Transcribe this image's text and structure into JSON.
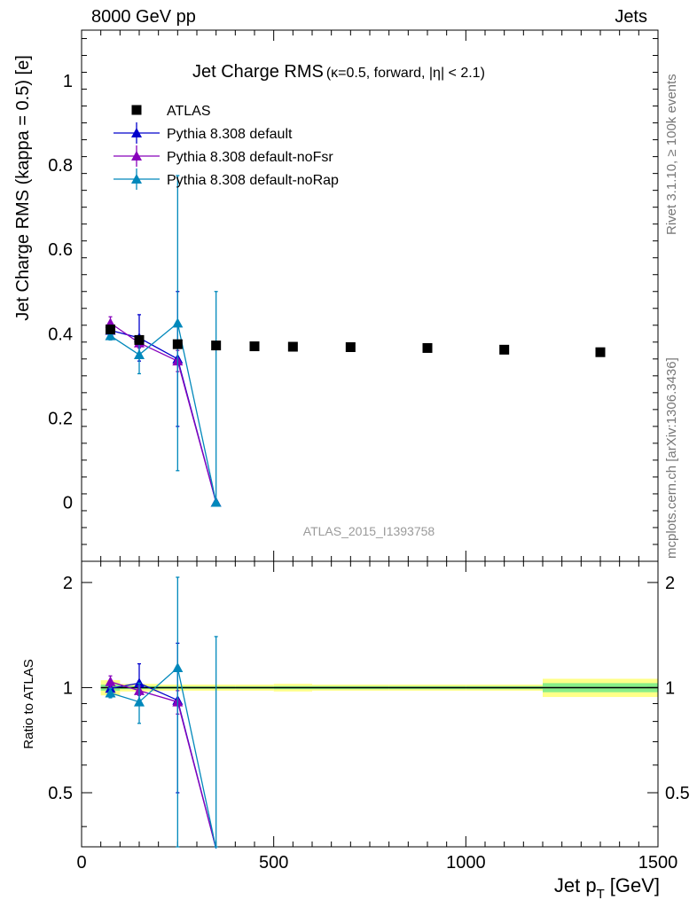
{
  "header": {
    "left": "8000 GeV pp",
    "right": "Jets"
  },
  "side": {
    "rivet": "Rivet 3.1.10, ≥ 100k events",
    "mcplots": "mcplots.cern.ch [arXiv:1306.3436]"
  },
  "colors": {
    "data": "#000000",
    "default": "#0000cc",
    "noFsr": "#8800bb",
    "noRap": "#0088bb",
    "band_outer": "#ffff88",
    "band_inner": "#88ee88"
  },
  "chart_data": [
    {
      "type": "scatter",
      "title": "Jet Charge RMS",
      "title_suffix": "(κ=0.5, forward, |η| < 2.1)",
      "watermark": "ATLAS_2015_I1393758",
      "ylabel": "Jet Charge RMS (kappa = 0.5) [e]",
      "xlim": [
        0,
        1500
      ],
      "ylim": [
        -0.14,
        1.12
      ],
      "y_ticks": [
        0,
        0.2,
        0.4,
        0.6,
        0.8,
        1
      ],
      "y_tick_labels": [
        "0",
        "0.2",
        "0.4",
        "0.6",
        "0.8",
        "1"
      ],
      "legend_position": "top-left",
      "series": [
        {
          "name": "ATLAS",
          "marker": "square",
          "color_key": "data",
          "points": [
            {
              "x": 75,
              "y": 0.41
            },
            {
              "x": 150,
              "y": 0.385
            },
            {
              "x": 250,
              "y": 0.375
            },
            {
              "x": 350,
              "y": 0.372
            },
            {
              "x": 450,
              "y": 0.37
            },
            {
              "x": 550,
              "y": 0.369
            },
            {
              "x": 700,
              "y": 0.368
            },
            {
              "x": 900,
              "y": 0.366
            },
            {
              "x": 1100,
              "y": 0.362
            },
            {
              "x": 1350,
              "y": 0.356
            }
          ]
        },
        {
          "name": "Pythia 8.308 default",
          "marker": "triangle",
          "color_key": "default",
          "points": [
            {
              "x": 75,
              "y": 0.408,
              "err": 0.012
            },
            {
              "x": 150,
              "y": 0.39,
              "err": 0.055
            },
            {
              "x": 250,
              "y": 0.34,
              "err": 0.16
            },
            {
              "x": 350,
              "y": 0.0,
              "err": 0.0
            }
          ]
        },
        {
          "name": "Pythia 8.308 default-noFsr",
          "marker": "triangle",
          "color_key": "noFsr",
          "points": [
            {
              "x": 75,
              "y": 0.425,
              "err": 0.015
            },
            {
              "x": 150,
              "y": 0.378,
              "err": 0.012
            },
            {
              "x": 250,
              "y": 0.335,
              "err": 0.025
            },
            {
              "x": 350,
              "y": 0.0,
              "err": 0.0
            }
          ]
        },
        {
          "name": "Pythia 8.308 default-noRap",
          "marker": "triangle",
          "color_key": "noRap",
          "points": [
            {
              "x": 75,
              "y": 0.395,
              "err": 0.01
            },
            {
              "x": 150,
              "y": 0.35,
              "err": 0.045
            },
            {
              "x": 250,
              "y": 0.425,
              "err": 0.35
            },
            {
              "x": 350,
              "y": 0.0,
              "err": 0.5
            }
          ]
        }
      ]
    },
    {
      "type": "scatter",
      "ylabel": "Ratio to ATLAS",
      "xlabel": "Jet p_T [GeV]",
      "xlim": [
        0,
        1500
      ],
      "ylim": [
        0.35,
        2.3
      ],
      "y_scale": "log",
      "x_ticks": [
        0,
        500,
        1000,
        1500
      ],
      "x_tick_labels": [
        "0",
        "500",
        "1000",
        "1500"
      ],
      "y_ticks": [
        0.5,
        1,
        2
      ],
      "y_tick_labels": [
        "0.5",
        "1",
        "2"
      ],
      "reference_band": [
        {
          "x0": 50,
          "x1": 100,
          "outer": [
            0.95,
            1.05
          ],
          "inner": [
            0.98,
            1.02
          ]
        },
        {
          "x0": 100,
          "x1": 200,
          "outer": [
            0.975,
            1.025
          ],
          "inner": [
            0.99,
            1.01
          ]
        },
        {
          "x0": 200,
          "x1": 300,
          "outer": [
            0.98,
            1.02
          ],
          "inner": [
            0.992,
            1.008
          ]
        },
        {
          "x0": 300,
          "x1": 400,
          "outer": [
            0.98,
            1.02
          ],
          "inner": [
            0.992,
            1.008
          ]
        },
        {
          "x0": 400,
          "x1": 500,
          "outer": [
            0.98,
            1.02
          ],
          "inner": [
            0.992,
            1.008
          ]
        },
        {
          "x0": 500,
          "x1": 600,
          "outer": [
            0.975,
            1.025
          ],
          "inner": [
            0.99,
            1.01
          ]
        },
        {
          "x0": 600,
          "x1": 800,
          "outer": [
            0.98,
            1.02
          ],
          "inner": [
            0.99,
            1.01
          ]
        },
        {
          "x0": 800,
          "x1": 1000,
          "outer": [
            0.98,
            1.02
          ],
          "inner": [
            0.99,
            1.01
          ]
        },
        {
          "x0": 1000,
          "x1": 1200,
          "outer": [
            0.98,
            1.02
          ],
          "inner": [
            0.99,
            1.01
          ]
        },
        {
          "x0": 1200,
          "x1": 1500,
          "outer": [
            0.94,
            1.06
          ],
          "inner": [
            0.97,
            1.03
          ]
        }
      ],
      "series": [
        {
          "name": "Pythia 8.308 default",
          "color_key": "default",
          "points": [
            {
              "x": 75,
              "y": 0.995,
              "err": 0.03
            },
            {
              "x": 150,
              "y": 1.03,
              "err": 0.14
            },
            {
              "x": 250,
              "y": 0.92,
              "err": 0.42
            },
            {
              "x": 350,
              "y": 0.0,
              "err": 0.0
            }
          ]
        },
        {
          "name": "Pythia 8.308 default-noFsr",
          "color_key": "noFsr",
          "points": [
            {
              "x": 75,
              "y": 1.04,
              "err": 0.04
            },
            {
              "x": 150,
              "y": 0.98,
              "err": 0.03
            },
            {
              "x": 250,
              "y": 0.91,
              "err": 0.07
            },
            {
              "x": 350,
              "y": 0.0,
              "err": 0.0
            }
          ]
        },
        {
          "name": "Pythia 8.308 default-noRap",
          "color_key": "noRap",
          "points": [
            {
              "x": 75,
              "y": 0.965,
              "err": 0.03
            },
            {
              "x": 150,
              "y": 0.91,
              "err": 0.12
            },
            {
              "x": 250,
              "y": 1.14,
              "err": 0.93
            },
            {
              "x": 350,
              "y": 0.0,
              "err": 1.4
            }
          ]
        }
      ]
    }
  ]
}
